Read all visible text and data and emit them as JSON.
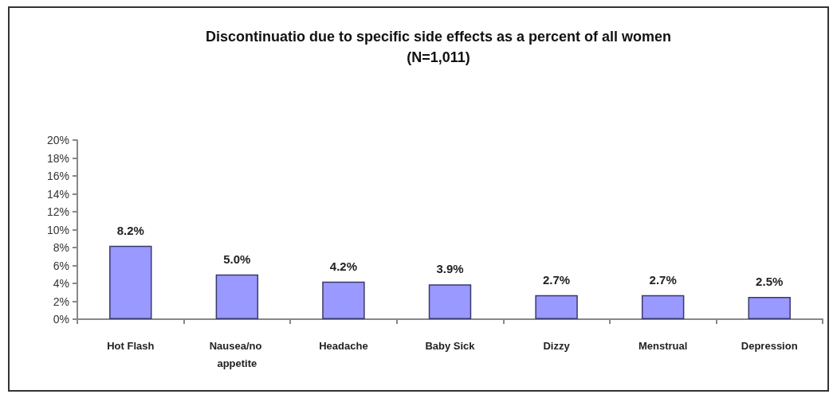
{
  "chart_data": {
    "type": "bar",
    "title": "Discontinuatio due to specific side effects as a percent of all women",
    "subtitle": "(N=1,011)",
    "categories": [
      "Hot Flash",
      "Nausea/no appetite",
      "Headache",
      "Baby Sick",
      "Dizzy",
      "Menstrual",
      "Depression"
    ],
    "values": [
      8.2,
      5.0,
      4.2,
      3.9,
      2.7,
      2.7,
      2.5
    ],
    "color": "#9999ff",
    "value_labels": [
      "8.2%",
      "5.0%",
      "4.2%",
      "3.9%",
      "2.7%",
      "2.7%",
      "2.5%"
    ],
    "ylim": [
      0,
      20
    ],
    "yticks": [
      {
        "value": 0,
        "label": "0%"
      },
      {
        "value": 2,
        "label": "2%"
      },
      {
        "value": 4,
        "label": "4%"
      },
      {
        "value": 6,
        "label": "6%"
      },
      {
        "value": 8,
        "label": "8%"
      },
      {
        "value": 10,
        "label": "10%"
      },
      {
        "value": 12,
        "label": "12%"
      },
      {
        "value": 14,
        "label": "14%"
      },
      {
        "value": 16,
        "label": "16%"
      },
      {
        "value": 18,
        "label": "18%"
      },
      {
        "value": 20,
        "label": "20%"
      }
    ],
    "grid": false
  }
}
